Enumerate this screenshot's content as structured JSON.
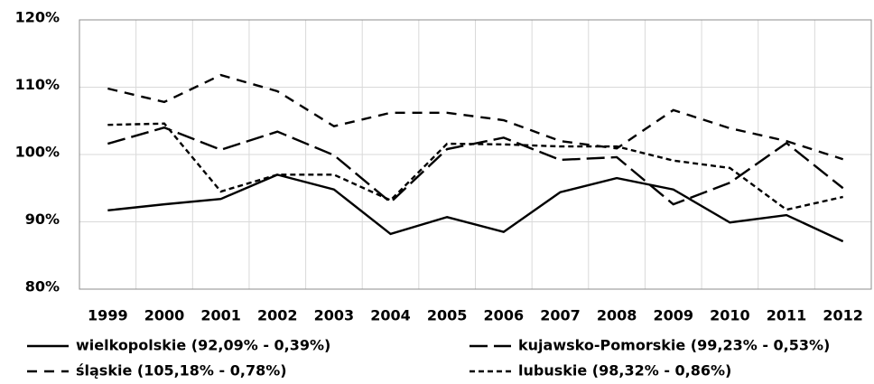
{
  "chart_data": {
    "type": "line",
    "categories": [
      "1999",
      "2000",
      "2001",
      "2002",
      "2003",
      "2004",
      "2005",
      "2006",
      "2007",
      "2008",
      "2009",
      "2010",
      "2011",
      "2012"
    ],
    "series": [
      {
        "name": "wielkopolskie (92,09% - 0,39%)",
        "color": "#000000",
        "values": [
          91.7,
          92.6,
          93.4,
          97.0,
          94.8,
          88.2,
          90.7,
          88.5,
          94.4,
          96.5,
          94.8,
          89.9,
          91.0,
          87.1
        ]
      },
      {
        "name": "kujawsko-Pomorskie (99,23% - 0,53%)",
        "color": "#000000",
        "values": [
          101.6,
          104.0,
          100.7,
          103.4,
          99.9,
          92.9,
          100.8,
          102.5,
          99.2,
          99.6,
          92.6,
          95.8,
          101.7,
          95.0
        ]
      },
      {
        "name": "śląskie (105,18% - 0,78%)",
        "color": "#000000",
        "values": [
          109.8,
          107.8,
          111.8,
          109.4,
          104.2,
          106.2,
          106.2,
          105.1,
          102.0,
          100.9,
          106.6,
          103.9,
          102.0,
          99.3
        ]
      },
      {
        "name": "lubuskie (98,32% - 0,86%)",
        "color": "#000000",
        "values": [
          104.4,
          104.6,
          94.5,
          97.0,
          97.0,
          93.2,
          101.6,
          101.5,
          101.2,
          101.2,
          99.1,
          98.0,
          91.8,
          93.7
        ]
      }
    ],
    "ylim": [
      80,
      120
    ],
    "yticks": [
      {
        "value": 80,
        "label": "80%"
      },
      {
        "value": 90,
        "label": "90%"
      },
      {
        "value": 100,
        "label": "100%"
      },
      {
        "value": 110,
        "label": "110%"
      },
      {
        "value": 120,
        "label": "120%"
      }
    ],
    "grid": true,
    "legend": "bottom"
  }
}
